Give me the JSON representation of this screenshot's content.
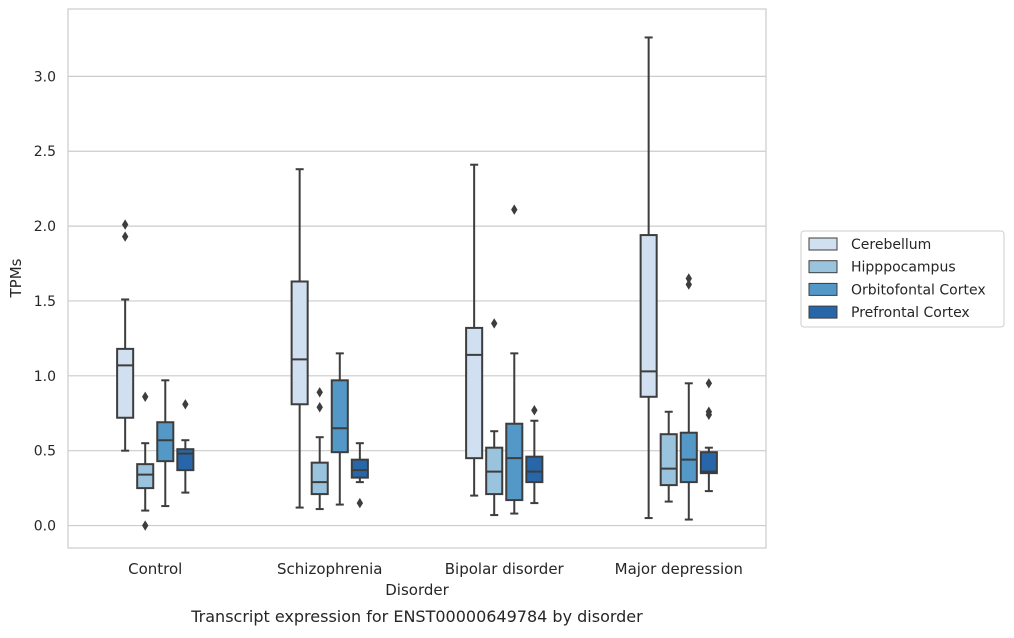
{
  "chart_data": {
    "type": "box",
    "caption": "Transcript expression for ENST00000649784 by disorder",
    "xlabel": "Disorder",
    "ylabel": "TPMs",
    "ylim": [
      -0.15,
      3.45
    ],
    "yticks": [
      0.0,
      0.5,
      1.0,
      1.5,
      2.0,
      2.5,
      3.0
    ],
    "ytick_labels": [
      "0.0",
      "0.5",
      "1.0",
      "1.5",
      "2.0",
      "2.5",
      "3.0"
    ],
    "grid": "horizontal",
    "legend_position": "right",
    "categories": [
      "Control",
      "Schizophrenia",
      "Bipolar disorder",
      "Major depression"
    ],
    "series": [
      {
        "name": "Cerebellum",
        "color": "#d1e0f0",
        "boxes": [
          {
            "min": 0.5,
            "q1": 0.72,
            "median": 1.07,
            "q3": 1.18,
            "max": 1.51,
            "outliers": [
              1.93,
              2.01
            ]
          },
          {
            "min": 0.12,
            "q1": 0.81,
            "median": 1.11,
            "q3": 1.63,
            "max": 2.38,
            "outliers": []
          },
          {
            "min": 0.2,
            "q1": 0.45,
            "median": 1.14,
            "q3": 1.32,
            "max": 2.41,
            "outliers": []
          },
          {
            "min": 0.05,
            "q1": 0.86,
            "median": 1.03,
            "q3": 1.94,
            "max": 3.26,
            "outliers": []
          }
        ]
      },
      {
        "name": "Hipppocampus",
        "color": "#9ac4de",
        "boxes": [
          {
            "min": 0.1,
            "q1": 0.25,
            "median": 0.34,
            "q3": 0.41,
            "max": 0.55,
            "outliers": [
              0.0,
              0.86
            ]
          },
          {
            "min": 0.11,
            "q1": 0.21,
            "median": 0.29,
            "q3": 0.42,
            "max": 0.59,
            "outliers": [
              0.79,
              0.89
            ]
          },
          {
            "min": 0.07,
            "q1": 0.21,
            "median": 0.36,
            "q3": 0.52,
            "max": 0.63,
            "outliers": [
              1.35
            ]
          },
          {
            "min": 0.16,
            "q1": 0.27,
            "median": 0.38,
            "q3": 0.61,
            "max": 0.76,
            "outliers": []
          }
        ]
      },
      {
        "name": "Orbitofontal Cortex",
        "color": "#5498c7",
        "boxes": [
          {
            "min": 0.13,
            "q1": 0.43,
            "median": 0.57,
            "q3": 0.69,
            "max": 0.97,
            "outliers": []
          },
          {
            "min": 0.14,
            "q1": 0.49,
            "median": 0.65,
            "q3": 0.97,
            "max": 1.15,
            "outliers": []
          },
          {
            "min": 0.08,
            "q1": 0.17,
            "median": 0.45,
            "q3": 0.68,
            "max": 1.15,
            "outliers": [
              2.11
            ]
          },
          {
            "min": 0.04,
            "q1": 0.29,
            "median": 0.44,
            "q3": 0.62,
            "max": 0.95,
            "outliers": [
              1.61,
              1.65
            ]
          }
        ]
      },
      {
        "name": "Prefrontal Cortex",
        "color": "#2767a9",
        "boxes": [
          {
            "min": 0.22,
            "q1": 0.37,
            "median": 0.48,
            "q3": 0.51,
            "max": 0.57,
            "outliers": [
              0.81
            ]
          },
          {
            "min": 0.29,
            "q1": 0.32,
            "median": 0.37,
            "q3": 0.44,
            "max": 0.55,
            "outliers": [
              0.15
            ]
          },
          {
            "min": 0.15,
            "q1": 0.29,
            "median": 0.36,
            "q3": 0.46,
            "max": 0.7,
            "outliers": [
              0.77
            ]
          },
          {
            "min": 0.23,
            "q1": 0.35,
            "median": 0.36,
            "q3": 0.49,
            "max": 0.52,
            "outliers": [
              0.74,
              0.76,
              0.95
            ]
          }
        ]
      }
    ]
  }
}
